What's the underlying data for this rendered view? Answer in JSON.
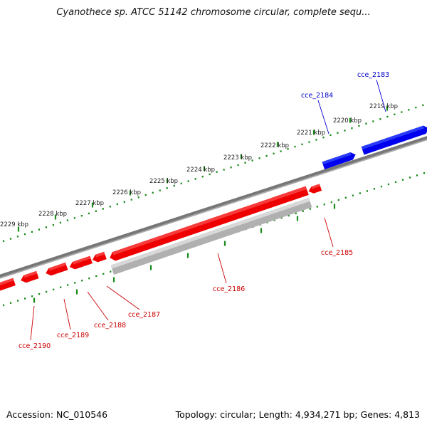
{
  "title": "Cyanothece sp. ATCC 51142 chromosome circular, complete sequ...",
  "footer": {
    "accession": "Accession: NC_010546",
    "summary": "Topology: circular; Length: 4,934,271 bp; Genes: 4,813"
  },
  "colors": {
    "backbone": "#777777",
    "forward_gene": "#0000ee",
    "reverse_gene": "#ee0000",
    "pseudo_gene": "#b0b0b0",
    "tick": "#1a8a1a",
    "forward_label": "#0000cc",
    "reverse_label": "#cc0000"
  },
  "scale_labels": [
    "2219 kbp",
    "2220 kbp",
    "2221 kbp",
    "2222 kbp",
    "2223 kbp",
    "2224 kbp",
    "2225 kbp",
    "2226 kbp",
    "2227 kbp",
    "2228 kbp",
    "2229 kbp"
  ],
  "genes": [
    {
      "name": "cce_2183",
      "strand": "forward"
    },
    {
      "name": "cce_2184",
      "strand": "forward"
    },
    {
      "name": "cce_2185",
      "strand": "reverse"
    },
    {
      "name": "cce_2186",
      "strand": "reverse_pseudo"
    },
    {
      "name": "cce_2187",
      "strand": "reverse"
    },
    {
      "name": "cce_2188",
      "strand": "reverse"
    },
    {
      "name": "cce_2189",
      "strand": "reverse"
    },
    {
      "name": "cce_2190",
      "strand": "reverse"
    }
  ]
}
